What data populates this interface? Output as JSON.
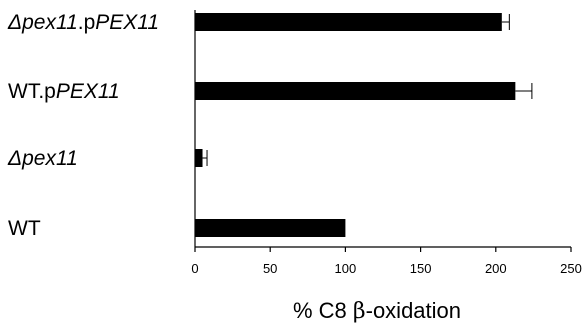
{
  "chart_data": {
    "type": "bar",
    "orientation": "horizontal",
    "categories": [
      {
        "parts": [
          {
            "text": "Δpex11",
            "italic": true
          },
          {
            "text": ".p",
            "italic": false
          },
          {
            "text": "PEX11",
            "italic": true
          }
        ]
      },
      {
        "parts": [
          {
            "text": "WT.p",
            "italic": false
          },
          {
            "text": "PEX11",
            "italic": true
          }
        ]
      },
      {
        "parts": [
          {
            "text": "Δpex11",
            "italic": true
          }
        ]
      },
      {
        "parts": [
          {
            "text": "WT",
            "italic": false
          }
        ]
      }
    ],
    "values": [
      204,
      213,
      5,
      100
    ],
    "errors": [
      5,
      11,
      3,
      0
    ],
    "xlim": [
      0,
      250
    ],
    "xticks": [
      "0",
      "50",
      "100",
      "150",
      "200",
      "250"
    ],
    "xlabel_parts": [
      {
        "text": "% C8 ",
        "greek": false
      },
      {
        "text": "β",
        "greek": true
      },
      {
        "text": "-oxidation",
        "greek": false
      }
    ],
    "ylabel": "",
    "title": "",
    "grid": false,
    "bar_color": "#000000"
  }
}
